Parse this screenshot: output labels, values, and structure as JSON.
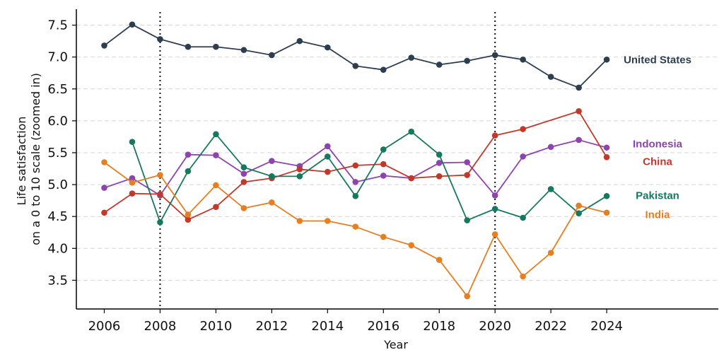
{
  "chart_data": {
    "type": "line",
    "title": "",
    "xlabel": "Year",
    "ylabel_lines": [
      "Life satisfaction",
      "on a 0 to 10 scale (zoomed in)"
    ],
    "xlim": [
      2005,
      2028
    ],
    "ylim": [
      3.05,
      7.75
    ],
    "x_ticks": [
      2006,
      2008,
      2010,
      2012,
      2014,
      2016,
      2018,
      2020,
      2022,
      2024
    ],
    "y_ticks": [
      3.5,
      4.0,
      4.5,
      5.0,
      5.5,
      6.0,
      6.5,
      7.0,
      7.5
    ],
    "y_tick_labels": [
      "3.5",
      "4.0",
      "4.5",
      "5.0",
      "5.5",
      "6.0",
      "6.5",
      "7.0",
      "7.5"
    ],
    "horizontal_grid": true,
    "vertical_markers": [
      2008,
      2020
    ],
    "series": [
      {
        "name": "United States",
        "color": "#2c3e50",
        "points": [
          [
            2006,
            7.18
          ],
          [
            2007,
            7.51
          ],
          [
            2008,
            7.28
          ],
          [
            2009,
            7.16
          ],
          [
            2010,
            7.16
          ],
          [
            2011,
            7.11
          ],
          [
            2012,
            7.03
          ],
          [
            2013,
            7.25
          ],
          [
            2014,
            7.15
          ],
          [
            2015,
            6.86
          ],
          [
            2016,
            6.8
          ],
          [
            2017,
            6.99
          ],
          [
            2018,
            6.88
          ],
          [
            2019,
            6.94
          ],
          [
            2020,
            7.03
          ],
          [
            2021,
            6.96
          ],
          [
            2022,
            6.69
          ],
          [
            2023,
            6.52
          ],
          [
            2024,
            6.96
          ]
        ]
      },
      {
        "name": "Indonesia",
        "color": "#8e44ad",
        "points": [
          [
            2006,
            4.95
          ],
          [
            2007,
            5.1
          ],
          [
            2008,
            4.83
          ],
          [
            2009,
            5.47
          ],
          [
            2010,
            5.46
          ],
          [
            2011,
            5.17
          ],
          [
            2012,
            5.37
          ],
          [
            2013,
            5.29
          ],
          [
            2014,
            5.6
          ],
          [
            2015,
            5.04
          ],
          [
            2016,
            5.14
          ],
          [
            2017,
            5.1
          ],
          [
            2018,
            5.34
          ],
          [
            2019,
            5.35
          ],
          [
            2020,
            4.83
          ],
          [
            2021,
            5.44
          ],
          [
            2022,
            5.59
          ],
          [
            2023,
            5.7
          ],
          [
            2024,
            5.58
          ]
        ]
      },
      {
        "name": "China",
        "color": "#c0392b",
        "points": [
          [
            2006,
            4.56
          ],
          [
            2007,
            4.86
          ],
          [
            2008,
            4.85
          ],
          [
            2009,
            4.45
          ],
          [
            2010,
            4.65
          ],
          [
            2011,
            5.04
          ],
          [
            2012,
            5.1
          ],
          [
            2013,
            5.24
          ],
          [
            2014,
            5.2
          ],
          [
            2015,
            5.3
          ],
          [
            2016,
            5.32
          ],
          [
            2017,
            5.1
          ],
          [
            2018,
            5.13
          ],
          [
            2019,
            5.15
          ],
          [
            2020,
            5.77
          ],
          [
            2021,
            5.87
          ],
          [
            2023,
            6.15
          ],
          [
            2024,
            5.43
          ]
        ]
      },
      {
        "name": "Pakistan",
        "color": "#16785f",
        "points": [
          [
            2007,
            5.67
          ],
          [
            2008,
            4.41
          ],
          [
            2009,
            5.21
          ],
          [
            2010,
            5.79
          ],
          [
            2011,
            5.27
          ],
          [
            2012,
            5.13
          ],
          [
            2013,
            5.13
          ],
          [
            2014,
            5.44
          ],
          [
            2015,
            4.82
          ],
          [
            2016,
            5.55
          ],
          [
            2017,
            5.83
          ],
          [
            2018,
            5.47
          ],
          [
            2019,
            4.44
          ],
          [
            2020,
            4.62
          ],
          [
            2021,
            4.48
          ],
          [
            2022,
            4.93
          ],
          [
            2023,
            4.55
          ],
          [
            2024,
            4.82
          ]
        ]
      },
      {
        "name": "India",
        "color": "#e67e22",
        "points": [
          [
            2006,
            5.35
          ],
          [
            2007,
            5.03
          ],
          [
            2008,
            5.15
          ],
          [
            2009,
            4.53
          ],
          [
            2010,
            4.99
          ],
          [
            2011,
            4.63
          ],
          [
            2012,
            4.72
          ],
          [
            2013,
            4.43
          ],
          [
            2014,
            4.43
          ],
          [
            2015,
            4.34
          ],
          [
            2016,
            4.18
          ],
          [
            2017,
            4.05
          ],
          [
            2018,
            3.82
          ],
          [
            2019,
            3.25
          ],
          [
            2020,
            4.22
          ],
          [
            2021,
            3.56
          ],
          [
            2022,
            3.93
          ],
          [
            2023,
            4.67
          ],
          [
            2024,
            4.56
          ]
        ]
      }
    ]
  }
}
